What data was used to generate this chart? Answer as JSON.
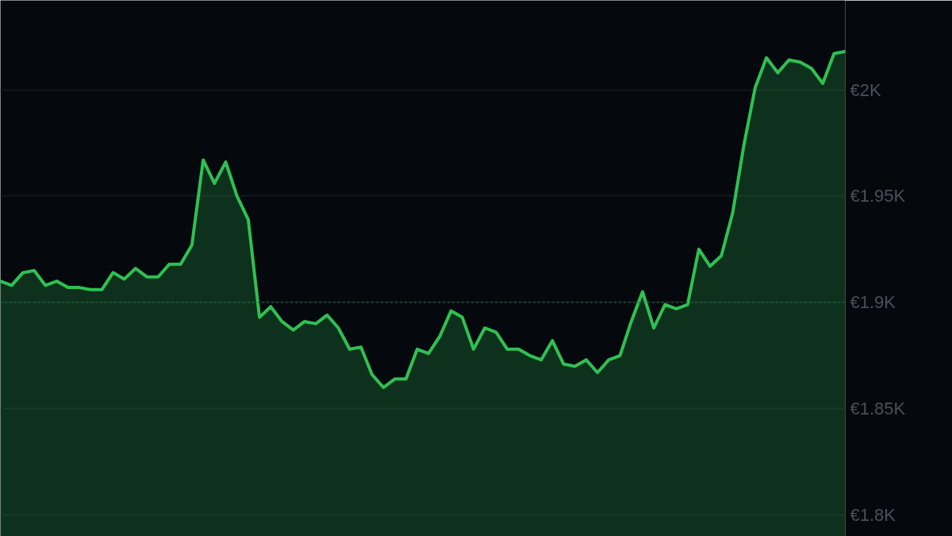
{
  "chart_data": {
    "type": "area",
    "color": "#2fc053",
    "categories": [
      null,
      null,
      null,
      null,
      null,
      null,
      null,
      null,
      null,
      null,
      null,
      null,
      null,
      null,
      null,
      null,
      null,
      null,
      null,
      null,
      null,
      null,
      null,
      null,
      null,
      null,
      null,
      null,
      null,
      null,
      null,
      null,
      null,
      null,
      null,
      null,
      null,
      null,
      null,
      null,
      null,
      null,
      null,
      null,
      null,
      null,
      null,
      null,
      null,
      null,
      null,
      null,
      null,
      null,
      null,
      null,
      null,
      null,
      null,
      null,
      null,
      null,
      null,
      null,
      null,
      null,
      null,
      null,
      null,
      null,
      null,
      null,
      null,
      null,
      null,
      null
    ],
    "values": [
      1910,
      1908,
      1914,
      1915,
      1908,
      1910,
      1907,
      1907,
      1906,
      1906,
      1914,
      1911,
      1916,
      1912,
      1912,
      1918,
      1918,
      1927,
      1967,
      1956,
      1966,
      1950,
      1939,
      1893,
      1898,
      1891,
      1887,
      1891,
      1890,
      1894,
      1888,
      1878,
      1879,
      1866,
      1860,
      1864,
      1864,
      1878,
      1876,
      1884,
      1896,
      1893,
      1878,
      1888,
      1886,
      1878,
      1878,
      1875,
      1873,
      1882,
      1871,
      1870,
      1873,
      1867,
      1873,
      1875,
      1891,
      1905,
      1888,
      1899,
      1897,
      1899,
      1925,
      1917,
      1922,
      1942,
      1974,
      2001,
      2015,
      2008,
      2014,
      2013,
      2010,
      2003,
      2017,
      2018
    ],
    "ylim": [
      1790,
      2042
    ],
    "yticks": [
      {
        "value": 1800,
        "label": "€1.8K"
      },
      {
        "value": 1850,
        "label": "€1.85K"
      },
      {
        "value": 1900,
        "label": "€1.9K"
      },
      {
        "value": 1950,
        "label": "€1.95K"
      },
      {
        "value": 2000,
        "label": "€2K"
      }
    ],
    "grid": "y",
    "tick_labels": "y",
    "ref_lines": [
      {
        "axis": "y",
        "value": 1900,
        "color": "#1e6a33",
        "line_style": "dotted"
      }
    ]
  }
}
